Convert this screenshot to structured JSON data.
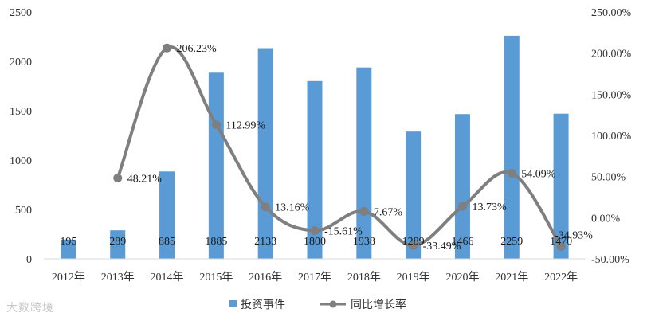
{
  "chart_data": {
    "type": "bar",
    "categories": [
      "2012年",
      "2013年",
      "2014年",
      "2015年",
      "2016年",
      "2017年",
      "2018年",
      "2019年",
      "2020年",
      "2021年",
      "2022年"
    ],
    "series": [
      {
        "name": "投资事件",
        "type": "bar",
        "axis": "left",
        "values": [
          195,
          289,
          885,
          1885,
          2133,
          1800,
          1938,
          1289,
          1466,
          2259,
          1470
        ],
        "labels": [
          "195",
          "289",
          "885",
          "1885",
          "2133",
          "1800",
          "1938",
          "1289",
          "1466",
          "2259",
          "1470"
        ],
        "color": "#5b9bd5"
      },
      {
        "name": "同比增长率",
        "type": "line",
        "axis": "right",
        "values": [
          null,
          48.21,
          206.23,
          112.99,
          13.16,
          -15.61,
          7.67,
          -33.49,
          13.73,
          54.09,
          -34.93
        ],
        "labels": [
          "",
          "48.21%",
          "206.23%",
          "112.99%",
          "13.16%",
          "-15.61%",
          "7.67%",
          "-33.49%",
          "13.73%",
          "54.09%",
          "-34.93%"
        ],
        "color": "#7f7f7f"
      }
    ],
    "y_left": {
      "min": 0,
      "max": 2500,
      "ticks": [
        "0",
        "500",
        "1000",
        "1500",
        "2000",
        "2500"
      ]
    },
    "y_right": {
      "min": -50,
      "max": 250,
      "ticks": [
        "-50.00%",
        "0.00%",
        "50.00%",
        "100.00%",
        "150.00%",
        "200.00%",
        "250.00%"
      ]
    },
    "grid": false,
    "legend": "bottom-center"
  },
  "watermark": "大数跨境"
}
